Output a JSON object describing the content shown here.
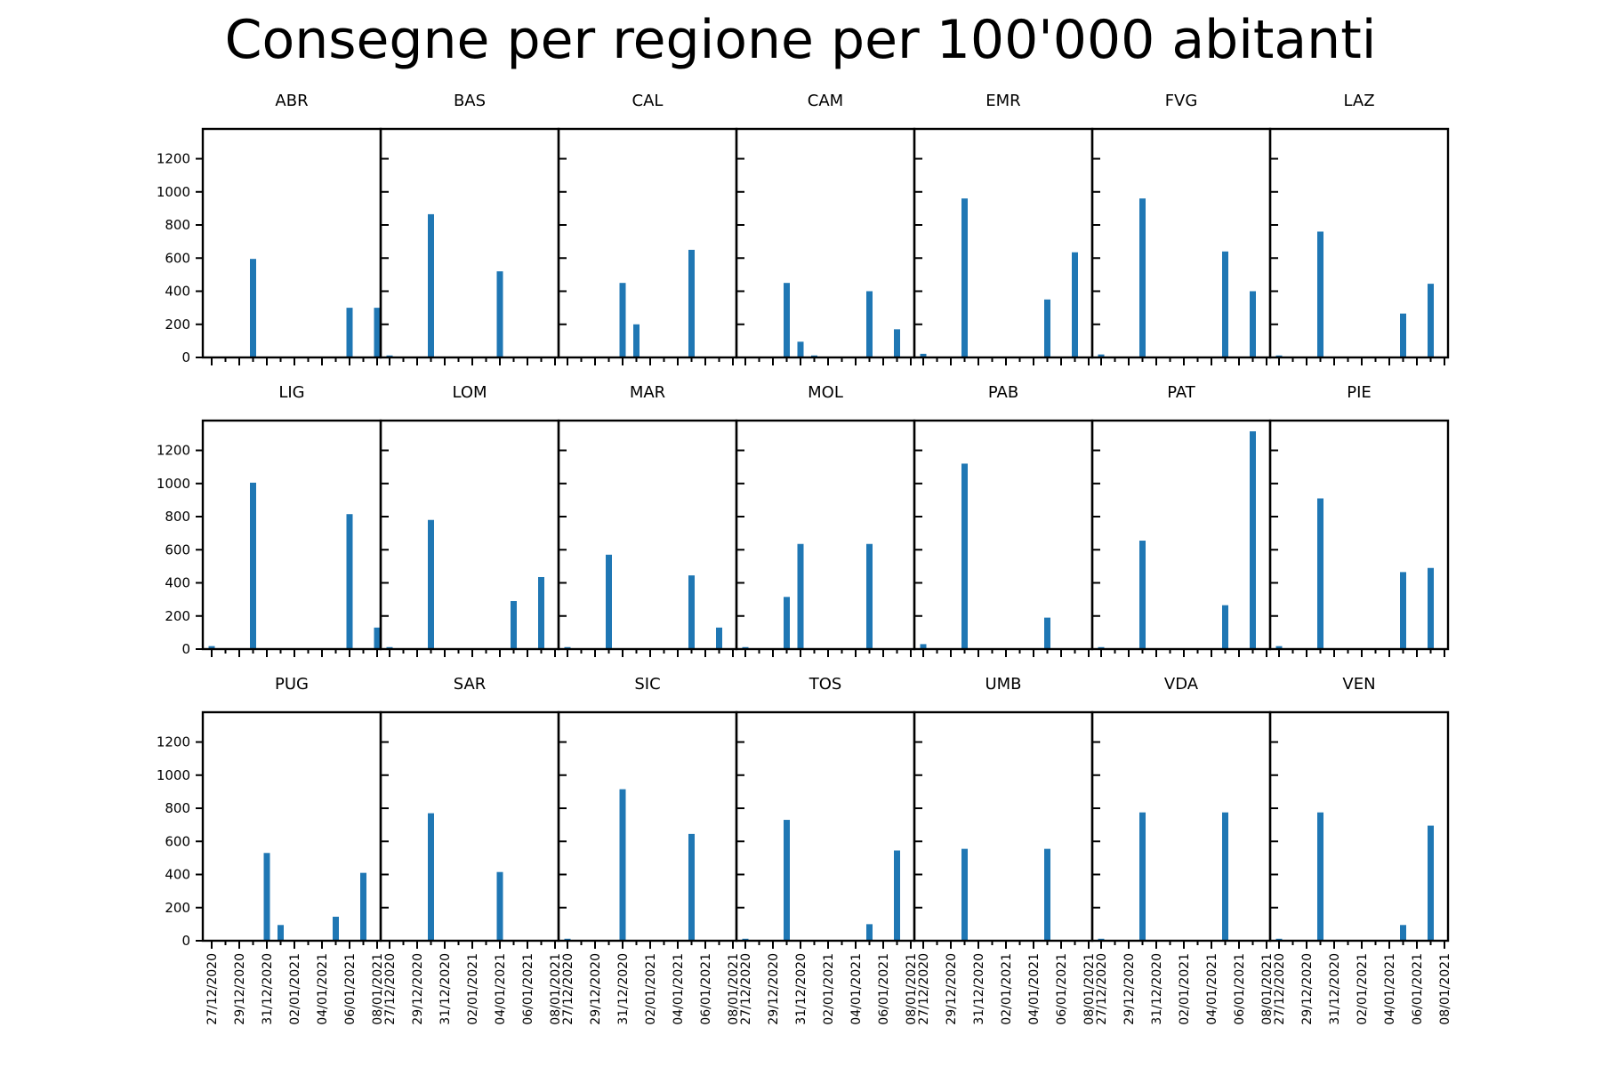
{
  "title": "Consegne per regione per 100'000 abitanti",
  "colors": {
    "bar": "#1f77b4",
    "axis": "#000000"
  },
  "chart_data": {
    "type": "bar",
    "layout": "small-multiples",
    "rows": 3,
    "cols": 7,
    "shared_y": true,
    "ylim": [
      0,
      1380
    ],
    "yticks": [
      0,
      200,
      400,
      600,
      800,
      1000,
      1200
    ],
    "x_dates": [
      "27/12/2020",
      "28/12/2020",
      "29/12/2020",
      "30/12/2020",
      "31/12/2020",
      "01/01/2021",
      "02/01/2021",
      "03/01/2021",
      "04/01/2021",
      "05/01/2021",
      "06/01/2021",
      "07/01/2021",
      "08/01/2021"
    ],
    "xtick_labels": [
      "27/12/2020",
      "29/12/2020",
      "31/12/2020",
      "02/01/2021",
      "04/01/2021",
      "06/01/2021",
      "08/01/2021"
    ],
    "panels": [
      {
        "name": "ABR",
        "values": [
          5,
          0,
          0,
          595,
          0,
          0,
          0,
          0,
          0,
          0,
          300,
          0,
          300
        ]
      },
      {
        "name": "BAS",
        "values": [
          12,
          0,
          0,
          865,
          0,
          0,
          0,
          0,
          520,
          0,
          0,
          0,
          0
        ]
      },
      {
        "name": "CAL",
        "values": [
          5,
          0,
          0,
          0,
          450,
          200,
          0,
          0,
          0,
          650,
          0,
          0,
          0
        ]
      },
      {
        "name": "CAM",
        "values": [
          5,
          0,
          0,
          450,
          95,
          12,
          0,
          0,
          0,
          400,
          0,
          170,
          0
        ]
      },
      {
        "name": "EMR",
        "values": [
          22,
          0,
          0,
          960,
          0,
          0,
          0,
          0,
          0,
          350,
          0,
          635,
          0
        ]
      },
      {
        "name": "FVG",
        "values": [
          18,
          0,
          0,
          960,
          0,
          0,
          0,
          0,
          0,
          640,
          0,
          400,
          0
        ]
      },
      {
        "name": "LAZ",
        "values": [
          12,
          0,
          0,
          760,
          0,
          0,
          0,
          0,
          0,
          265,
          0,
          445,
          0
        ]
      },
      {
        "name": "LIG",
        "values": [
          18,
          0,
          0,
          1005,
          0,
          0,
          0,
          0,
          0,
          0,
          815,
          0,
          130
        ]
      },
      {
        "name": "LOM",
        "values": [
          12,
          0,
          0,
          780,
          0,
          0,
          0,
          0,
          0,
          290,
          0,
          435,
          0
        ]
      },
      {
        "name": "MAR",
        "values": [
          12,
          0,
          0,
          570,
          0,
          0,
          0,
          0,
          0,
          445,
          0,
          130,
          0
        ]
      },
      {
        "name": "MOL",
        "values": [
          12,
          0,
          0,
          315,
          635,
          0,
          0,
          0,
          0,
          635,
          0,
          0,
          0
        ]
      },
      {
        "name": "PAB",
        "values": [
          30,
          0,
          0,
          1120,
          0,
          0,
          0,
          0,
          0,
          190,
          0,
          0,
          0
        ]
      },
      {
        "name": "PAT",
        "values": [
          12,
          0,
          0,
          655,
          0,
          0,
          0,
          0,
          0,
          265,
          0,
          1315,
          0
        ]
      },
      {
        "name": "PIE",
        "values": [
          18,
          0,
          0,
          910,
          0,
          0,
          0,
          0,
          0,
          465,
          0,
          490,
          0
        ]
      },
      {
        "name": "PUG",
        "values": [
          5,
          0,
          0,
          0,
          530,
          95,
          0,
          0,
          0,
          145,
          0,
          410,
          0
        ]
      },
      {
        "name": "SAR",
        "values": [
          5,
          0,
          0,
          770,
          0,
          0,
          0,
          0,
          415,
          0,
          0,
          0,
          0
        ]
      },
      {
        "name": "SIC",
        "values": [
          12,
          0,
          0,
          0,
          915,
          0,
          0,
          0,
          0,
          645,
          0,
          0,
          0
        ]
      },
      {
        "name": "TOS",
        "values": [
          12,
          0,
          0,
          730,
          0,
          0,
          0,
          0,
          0,
          100,
          0,
          545,
          0
        ]
      },
      {
        "name": "UMB",
        "values": [
          5,
          0,
          0,
          555,
          0,
          0,
          0,
          0,
          0,
          555,
          0,
          0,
          0
        ]
      },
      {
        "name": "VDA",
        "values": [
          12,
          0,
          0,
          775,
          0,
          0,
          0,
          0,
          0,
          775,
          0,
          0,
          0
        ]
      },
      {
        "name": "VEN",
        "values": [
          12,
          0,
          0,
          775,
          0,
          0,
          0,
          0,
          0,
          95,
          0,
          695,
          0
        ]
      }
    ]
  }
}
